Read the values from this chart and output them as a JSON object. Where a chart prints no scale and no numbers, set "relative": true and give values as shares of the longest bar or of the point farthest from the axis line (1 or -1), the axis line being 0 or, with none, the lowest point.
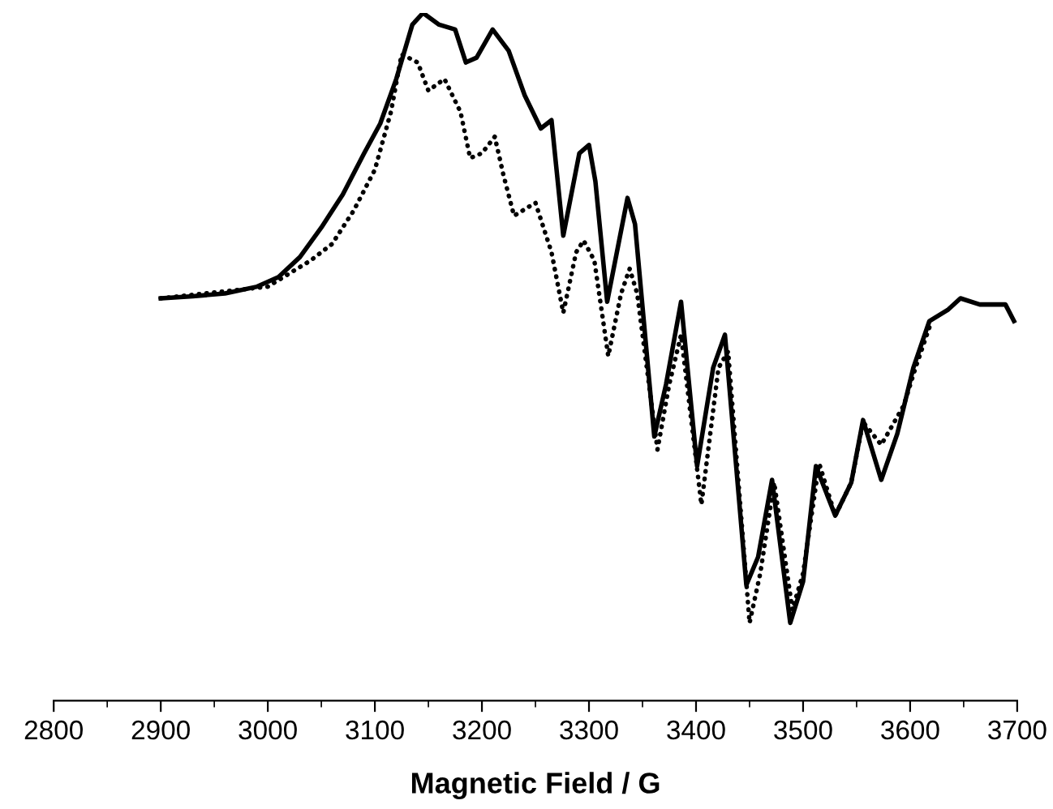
{
  "chart_data": {
    "type": "line",
    "relative": true,
    "xlabel": "Magnetic Field / G",
    "xlim": [
      2800,
      3700
    ],
    "xticks": [
      2800,
      2900,
      3000,
      3100,
      3200,
      3300,
      3400,
      3500,
      3600,
      3700
    ],
    "tick_labels": "x",
    "grid": false,
    "legend": false,
    "marker": "none",
    "series": [
      {
        "color": "#000000",
        "line_style": "solid",
        "x": [
          2900,
          2930,
          2960,
          2990,
          3010,
          3030,
          3050,
          3070,
          3090,
          3105,
          3120,
          3135,
          3145,
          3160,
          3175,
          3185,
          3195,
          3210,
          3225,
          3240,
          3255,
          3265,
          3276,
          3291,
          3300,
          3306,
          3317,
          3336,
          3343,
          3361,
          3372,
          3386,
          3401,
          3416,
          3427,
          3447,
          3458,
          3471,
          3488,
          3500,
          3512,
          3530,
          3545,
          3556,
          3573,
          3588,
          3603,
          3618,
          3635,
          3647,
          3665,
          3689,
          3697
        ],
        "values": [
          0.585,
          0.588,
          0.592,
          0.602,
          0.616,
          0.645,
          0.688,
          0.736,
          0.796,
          0.839,
          0.904,
          0.983,
          1,
          0.983,
          0.976,
          0.928,
          0.935,
          0.976,
          0.945,
          0.88,
          0.832,
          0.844,
          0.676,
          0.796,
          0.808,
          0.755,
          0.58,
          0.731,
          0.693,
          0.384,
          0.46,
          0.58,
          0.341,
          0.484,
          0.532,
          0.168,
          0.209,
          0.321,
          0.113,
          0.173,
          0.341,
          0.269,
          0.317,
          0.408,
          0.321,
          0.388,
          0.484,
          0.552,
          0.568,
          0.585,
          0.576,
          0.576,
          0.552
        ]
      },
      {
        "color": "#000000",
        "line_style": "dotted",
        "x": [
          2900,
          3000,
          3040,
          3060,
          3080,
          3100,
          3115,
          3125,
          3140,
          3150,
          3165,
          3180,
          3189,
          3200,
          3212,
          3220,
          3230,
          3250,
          3265,
          3276,
          3288,
          3295,
          3305,
          3318,
          3330,
          3338,
          3345,
          3364,
          3375,
          3386,
          3405,
          3421,
          3430,
          3450,
          3460,
          3473,
          3490,
          3500,
          3515,
          3530,
          3545,
          3556,
          3573,
          3594,
          3605,
          3620
        ],
        "values": [
          0.585,
          0.602,
          0.64,
          0.664,
          0.712,
          0.772,
          0.856,
          0.94,
          0.928,
          0.887,
          0.904,
          0.856,
          0.789,
          0.796,
          0.82,
          0.765,
          0.705,
          0.724,
          0.652,
          0.564,
          0.652,
          0.669,
          0.64,
          0.501,
          0.592,
          0.628,
          0.592,
          0.365,
          0.46,
          0.532,
          0.285,
          0.484,
          0.508,
          0.113,
          0.185,
          0.317,
          0.132,
          0.185,
          0.345,
          0.269,
          0.317,
          0.405,
          0.372,
          0.429,
          0.484,
          0.552
        ]
      }
    ]
  }
}
